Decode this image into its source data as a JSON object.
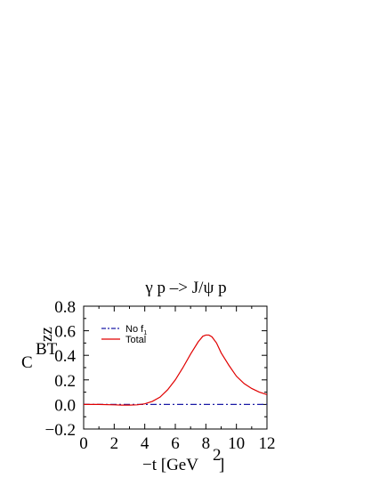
{
  "chart_data": {
    "type": "line",
    "title": "γ p –> J/ψ p",
    "xlabel": "−t [GeV",
    "xlabel_sup": "2",
    "xlabel_end": "]",
    "ylabel": "C",
    "ylabel_sup": "BT",
    "ylabel_sub": "zz",
    "xlim": [
      0,
      12
    ],
    "ylim": [
      -0.2,
      0.8
    ],
    "xticks": [
      0,
      2,
      4,
      6,
      8,
      10,
      12
    ],
    "yticks": [
      -0.2,
      0.0,
      0.2,
      0.4,
      0.6,
      0.8
    ],
    "xtick_labels": [
      "0",
      "2",
      "4",
      "6",
      "8",
      "10",
      "12"
    ],
    "ytick_labels": [
      "−0.2",
      "0.0",
      "0.2",
      "0.4",
      "0.6",
      "0.8"
    ],
    "grid": false,
    "legend_position": "top-left",
    "series": [
      {
        "name": "No f",
        "name_sub": "1",
        "color": "#1a1aa6",
        "dash": "dash-dot",
        "x": [
          0,
          2,
          4,
          6,
          8,
          10,
          12
        ],
        "y": [
          0.0,
          0.0,
          0.0,
          0.0,
          0.0,
          0.0,
          0.0
        ]
      },
      {
        "name": "Total",
        "color": "#e00000",
        "dash": "solid",
        "x": [
          0,
          1,
          2,
          2.5,
          3,
          3.5,
          4,
          4.5,
          5,
          5.5,
          6,
          6.5,
          7,
          7.5,
          7.8,
          8.0,
          8.2,
          8.4,
          8.7,
          9,
          9.5,
          10,
          10.5,
          11,
          11.5,
          12
        ],
        "y": [
          0.0,
          0.0,
          -0.003,
          -0.005,
          -0.005,
          -0.003,
          0.005,
          0.025,
          0.06,
          0.12,
          0.2,
          0.3,
          0.41,
          0.51,
          0.555,
          0.565,
          0.565,
          0.55,
          0.5,
          0.42,
          0.32,
          0.23,
          0.17,
          0.13,
          0.1,
          0.08
        ]
      }
    ]
  }
}
